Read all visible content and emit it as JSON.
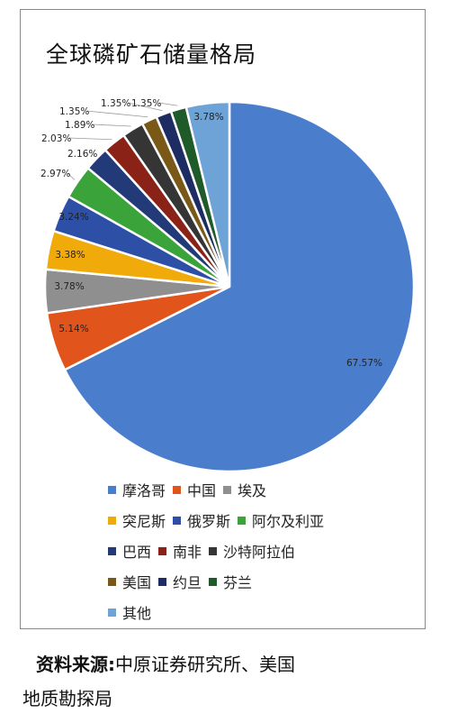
{
  "chart_data": {
    "type": "pie",
    "title": "全球磷矿石储量格局",
    "categories": [
      "摩洛哥",
      "中国",
      "埃及",
      "突尼斯",
      "俄罗斯",
      "阿尔及利亚",
      "巴西",
      "南非",
      "沙特阿拉伯",
      "美国",
      "约旦",
      "芬兰",
      "其他"
    ],
    "values": [
      67.57,
      5.14,
      3.78,
      3.38,
      3.24,
      2.97,
      2.16,
      2.03,
      1.89,
      1.35,
      1.35,
      1.35,
      3.78
    ],
    "data_labels": [
      "67.57%",
      "5.14%",
      "3.78%",
      "3.38%",
      "3.24%",
      "2.97%",
      "2.16%",
      "2.03%",
      "1.89%",
      "1.35%",
      "1.35%",
      "1.35%",
      "3.78%"
    ],
    "colors": [
      "#4a7ecc",
      "#e1541c",
      "#8f8f8f",
      "#f0aa0a",
      "#2e4fa6",
      "#3aa43a",
      "#223a78",
      "#8a2218",
      "#353535",
      "#7a5818",
      "#1e2c64",
      "#1e5a2a",
      "#6ea3d8"
    ],
    "legend_position": "bottom",
    "legend_rows": [
      [
        0,
        1,
        2
      ],
      [
        3,
        4,
        5
      ],
      [
        6,
        7,
        8
      ],
      [
        9,
        10,
        11
      ],
      [
        12
      ]
    ]
  },
  "source": {
    "prefix": "资料来源:",
    "line1": "中原证券研究所、美国",
    "line2": "地质勘探局"
  }
}
